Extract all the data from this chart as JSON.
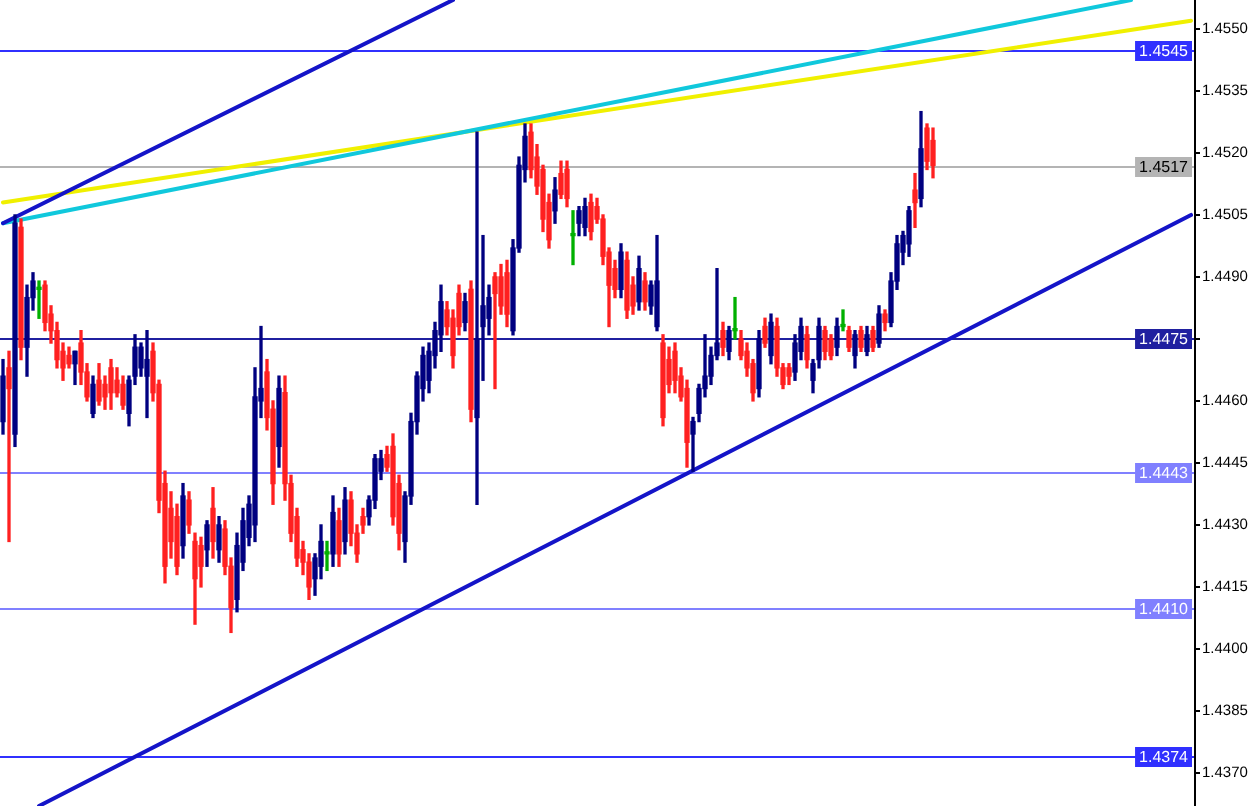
{
  "chart_data": {
    "type": "candlestick",
    "tick_labels": "y",
    "categories": [
      null,
      null,
      null,
      null,
      null,
      null,
      null,
      null,
      null,
      null,
      null,
      null,
      null,
      null,
      null,
      null,
      null,
      null,
      null,
      null,
      null,
      null,
      null,
      null,
      null,
      null,
      null,
      null,
      null,
      null,
      null,
      null,
      null,
      null,
      null,
      null,
      null,
      null,
      null,
      null,
      null,
      null,
      null,
      null,
      null,
      null,
      null,
      null,
      null,
      null,
      null,
      null,
      null,
      null,
      null,
      null,
      null,
      null,
      null,
      null,
      null,
      null,
      null,
      null,
      null,
      null,
      null,
      null,
      null,
      null,
      null,
      null,
      null,
      null,
      null,
      null,
      null,
      null,
      null,
      null,
      null,
      null,
      null,
      null,
      null,
      null,
      null,
      null,
      null,
      null,
      null,
      null,
      null,
      null,
      null,
      null,
      null,
      null,
      null,
      null,
      null,
      null,
      null,
      null,
      null,
      null,
      null,
      null,
      null,
      null,
      null,
      null,
      null,
      null,
      null,
      null,
      null,
      null,
      null,
      null,
      null,
      null,
      null,
      null,
      null,
      null,
      null,
      null,
      null,
      null,
      null,
      null,
      null,
      null,
      null,
      null,
      null,
      null,
      null,
      null,
      null,
      null,
      null,
      null,
      null,
      null,
      null,
      null,
      null,
      null,
      null,
      null,
      null,
      null,
      null,
      null,
      null,
      null,
      null,
      null,
      null,
      null,
      null,
      null,
      null,
      null,
      null,
      null,
      null,
      null,
      null,
      null,
      null,
      null,
      null,
      null,
      null,
      null,
      null,
      null,
      null,
      null,
      null,
      null,
      null,
      null,
      null,
      null,
      null,
      null,
      null,
      null,
      null,
      null,
      null,
      null,
      null,
      null,
      null
    ],
    "ohlc": [
      [
        1.4455,
        1.447,
        1.4452,
        1.4466
      ],
      [
        1.4468,
        1.4472,
        1.4426,
        1.4463
      ],
      [
        1.4452,
        1.4505,
        1.4449,
        1.4503
      ],
      [
        1.4502,
        1.4504,
        1.447,
        1.4473
      ],
      [
        1.4473,
        1.4488,
        1.4466,
        1.4485
      ],
      [
        1.4485,
        1.4491,
        1.4482,
        1.4489
      ],
      [
        1.4487,
        1.4489,
        1.448,
        1.4487
      ],
      [
        1.4488,
        1.4489,
        1.4477,
        1.4479
      ],
      [
        1.4481,
        1.4483,
        1.4474,
        1.4477
      ],
      [
        1.4477,
        1.4479,
        1.4468,
        1.447
      ],
      [
        1.4472,
        1.4474,
        1.4465,
        1.4468
      ],
      [
        1.4471,
        1.4473,
        1.4468,
        1.4469
      ],
      [
        1.4469,
        1.4472,
        1.4464,
        1.4472
      ],
      [
        1.4474,
        1.4477,
        1.4464,
        1.4467
      ],
      [
        1.4467,
        1.4469,
        1.446,
        1.4461
      ],
      [
        1.4457,
        1.4466,
        1.4456,
        1.4464
      ],
      [
        1.4465,
        1.4469,
        1.4459,
        1.446
      ],
      [
        1.4464,
        1.4466,
        1.4458,
        1.4461
      ],
      [
        1.4468,
        1.447,
        1.4458,
        1.4462
      ],
      [
        1.4465,
        1.4468,
        1.4461,
        1.4462
      ],
      [
        1.4464,
        1.4466,
        1.4458,
        1.4459
      ],
      [
        1.4457,
        1.4466,
        1.4454,
        1.4465
      ],
      [
        1.4466,
        1.4476,
        1.4464,
        1.4473
      ],
      [
        1.4468,
        1.4474,
        1.4466,
        1.4473
      ],
      [
        1.4466,
        1.4477,
        1.4456,
        1.447
      ],
      [
        1.4472,
        1.4474,
        1.446,
        1.4462
      ],
      [
        1.4464,
        1.4465,
        1.4433,
        1.4436
      ],
      [
        1.444,
        1.4443,
        1.4416,
        1.442
      ],
      [
        1.4434,
        1.4438,
        1.4422,
        1.4426
      ],
      [
        1.4432,
        1.4435,
        1.4418,
        1.442
      ],
      [
        1.4425,
        1.444,
        1.4422,
        1.4437
      ],
      [
        1.4436,
        1.4438,
        1.4428,
        1.443
      ],
      [
        1.4426,
        1.4428,
        1.4406,
        1.4417
      ],
      [
        1.4425,
        1.4427,
        1.4415,
        1.442
      ],
      [
        1.4424,
        1.4431,
        1.442,
        1.443
      ],
      [
        1.4434,
        1.4439,
        1.4422,
        1.4426
      ],
      [
        1.4424,
        1.4432,
        1.4421,
        1.443
      ],
      [
        1.4429,
        1.4431,
        1.4418,
        1.442
      ],
      [
        1.442,
        1.4422,
        1.4404,
        1.441
      ],
      [
        1.4412,
        1.4428,
        1.4409,
        1.4425
      ],
      [
        1.4421,
        1.4434,
        1.4419,
        1.4431
      ],
      [
        1.4427,
        1.4437,
        1.4425,
        1.4435
      ],
      [
        1.443,
        1.4468,
        1.4426,
        1.4461
      ],
      [
        1.446,
        1.4478,
        1.4456,
        1.4463
      ],
      [
        1.4467,
        1.447,
        1.4453,
        1.4456
      ],
      [
        1.4458,
        1.446,
        1.4435,
        1.444
      ],
      [
        1.4449,
        1.4466,
        1.4444,
        1.4463
      ],
      [
        1.4462,
        1.4466,
        1.4436,
        1.444
      ],
      [
        1.444,
        1.4442,
        1.4426,
        1.4428
      ],
      [
        1.4432,
        1.4434,
        1.442,
        1.4422
      ],
      [
        1.4424,
        1.4426,
        1.4418,
        1.4421
      ],
      [
        1.4421,
        1.4423,
        1.4412,
        1.4415
      ],
      [
        1.4417,
        1.4423,
        1.4413,
        1.4422
      ],
      [
        1.442,
        1.443,
        1.4417,
        1.4426
      ],
      [
        1.4423,
        1.4426,
        1.4419,
        1.4423
      ],
      [
        1.4423,
        1.4437,
        1.442,
        1.4433
      ],
      [
        1.4431,
        1.4434,
        1.442,
        1.4423
      ],
      [
        1.4426,
        1.4439,
        1.4423,
        1.4436
      ],
      [
        1.4436,
        1.4438,
        1.4425,
        1.4428
      ],
      [
        1.4428,
        1.443,
        1.4421,
        1.4423
      ],
      [
        1.4432,
        1.4434,
        1.4428,
        1.443
      ],
      [
        1.4432,
        1.4437,
        1.443,
        1.4436
      ],
      [
        1.4436,
        1.4447,
        1.4434,
        1.4446
      ],
      [
        1.4443,
        1.4448,
        1.4441,
        1.4446
      ],
      [
        1.4447,
        1.4449,
        1.4443,
        1.4444
      ],
      [
        1.4449,
        1.4452,
        1.443,
        1.4432
      ],
      [
        1.444,
        1.4442,
        1.4424,
        1.4428
      ],
      [
        1.4426,
        1.4438,
        1.4421,
        1.4437
      ],
      [
        1.4437,
        1.4457,
        1.4435,
        1.4455
      ],
      [
        1.4455,
        1.4467,
        1.4452,
        1.4466
      ],
      [
        1.4463,
        1.4473,
        1.446,
        1.4471
      ],
      [
        1.4465,
        1.4474,
        1.4462,
        1.4472
      ],
      [
        1.4471,
        1.4479,
        1.4468,
        1.4477
      ],
      [
        1.4476,
        1.4488,
        1.4472,
        1.4484
      ],
      [
        1.4482,
        1.4484,
        1.4476,
        1.4478
      ],
      [
        1.448,
        1.4482,
        1.4468,
        1.4471
      ],
      [
        1.4486,
        1.4488,
        1.4476,
        1.4478
      ],
      [
        1.4479,
        1.4486,
        1.4477,
        1.4484
      ],
      [
        1.4487,
        1.4489,
        1.4455,
        1.4458
      ],
      [
        1.4456,
        1.4525,
        1.4435,
        1.4475
      ],
      [
        1.4478,
        1.45,
        1.4465,
        1.4483
      ],
      [
        1.448,
        1.4488,
        1.4476,
        1.4485
      ],
      [
        1.449,
        1.4491,
        1.4463,
        1.4486
      ],
      [
        1.449,
        1.4493,
        1.4481,
        1.4483
      ],
      [
        1.4491,
        1.4494,
        1.4478,
        1.4481
      ],
      [
        1.4477,
        1.4499,
        1.4476,
        1.4497
      ],
      [
        1.4497,
        1.4519,
        1.4496,
        1.4517
      ],
      [
        1.4516,
        1.4527,
        1.4513,
        1.4524
      ],
      [
        1.4525,
        1.4527,
        1.4514,
        1.4516
      ],
      [
        1.4519,
        1.4522,
        1.451,
        1.4512
      ],
      [
        1.4516,
        1.4517,
        1.4501,
        1.4504
      ],
      [
        1.4508,
        1.451,
        1.4497,
        1.4499
      ],
      [
        1.4506,
        1.4514,
        1.4503,
        1.4511
      ],
      [
        1.4515,
        1.4518,
        1.4509,
        1.451
      ],
      [
        1.4516,
        1.4518,
        1.4507,
        1.4509
      ],
      [
        1.45,
        1.4506,
        1.4493,
        1.45
      ],
      [
        1.4503,
        1.4507,
        1.45,
        1.4506
      ],
      [
        1.4502,
        1.4509,
        1.45,
        1.4507
      ],
      [
        1.4508,
        1.451,
        1.4499,
        1.4501
      ],
      [
        1.4507,
        1.4509,
        1.4503,
        1.4504
      ],
      [
        1.4504,
        1.4505,
        1.4493,
        1.4495
      ],
      [
        1.4496,
        1.4497,
        1.4478,
        1.4488
      ],
      [
        1.4492,
        1.4494,
        1.4485,
        1.4487
      ],
      [
        1.4487,
        1.4498,
        1.4485,
        1.4496
      ],
      [
        1.4494,
        1.4496,
        1.448,
        1.4482
      ],
      [
        1.4488,
        1.449,
        1.4481,
        1.4483
      ],
      [
        1.4484,
        1.4495,
        1.4482,
        1.4492
      ],
      [
        1.4489,
        1.4491,
        1.4482,
        1.4484
      ],
      [
        1.4483,
        1.4489,
        1.4481,
        1.4488
      ],
      [
        1.4478,
        1.45,
        1.4477,
        1.4489
      ],
      [
        1.4474,
        1.4476,
        1.4454,
        1.4456
      ],
      [
        1.447,
        1.4473,
        1.4462,
        1.4464
      ],
      [
        1.4472,
        1.4474,
        1.4462,
        1.4465
      ],
      [
        1.4466,
        1.4468,
        1.446,
        1.4461
      ],
      [
        1.4463,
        1.4465,
        1.4444,
        1.445
      ],
      [
        1.4452,
        1.4456,
        1.4443,
        1.4455
      ],
      [
        1.4457,
        1.4464,
        1.4455,
        1.4463
      ],
      [
        1.4463,
        1.4476,
        1.4461,
        1.4466
      ],
      [
        1.4466,
        1.4473,
        1.4464,
        1.4471
      ],
      [
        1.4471,
        1.4492,
        1.447,
        1.4474
      ],
      [
        1.4477,
        1.4479,
        1.4471,
        1.4473
      ],
      [
        1.4472,
        1.4478,
        1.447,
        1.4477
      ],
      [
        1.4477,
        1.4485,
        1.4475,
        1.4477
      ],
      [
        1.4475,
        1.4477,
        1.447,
        1.4471
      ],
      [
        1.4472,
        1.4474,
        1.4466,
        1.4468
      ],
      [
        1.4469,
        1.447,
        1.446,
        1.4462
      ],
      [
        1.4463,
        1.4477,
        1.4461,
        1.4475
      ],
      [
        1.4478,
        1.448,
        1.4473,
        1.4474
      ],
      [
        1.4471,
        1.4481,
        1.4469,
        1.4479
      ],
      [
        1.4478,
        1.448,
        1.4466,
        1.4468
      ],
      [
        1.4468,
        1.4469,
        1.4463,
        1.4464
      ],
      [
        1.4468,
        1.4469,
        1.4464,
        1.4466
      ],
      [
        1.4467,
        1.4476,
        1.4465,
        1.4474
      ],
      [
        1.4472,
        1.448,
        1.447,
        1.4478
      ],
      [
        1.4476,
        1.4478,
        1.4468,
        1.447
      ],
      [
        1.4465,
        1.447,
        1.4462,
        1.4469
      ],
      [
        1.447,
        1.448,
        1.4468,
        1.4478
      ],
      [
        1.4477,
        1.4478,
        1.447,
        1.4472
      ],
      [
        1.4475,
        1.4476,
        1.447,
        1.4471
      ],
      [
        1.4473,
        1.448,
        1.4471,
        1.4478
      ],
      [
        1.4478,
        1.4482,
        1.4477,
        1.4478
      ],
      [
        1.4477,
        1.4478,
        1.4472,
        1.4473
      ],
      [
        1.4471,
        1.4477,
        1.4468,
        1.4476
      ],
      [
        1.4477,
        1.4478,
        1.4472,
        1.4473
      ],
      [
        1.4472,
        1.4478,
        1.4471,
        1.4476
      ],
      [
        1.4477,
        1.4478,
        1.4472,
        1.4473
      ],
      [
        1.4474,
        1.4483,
        1.4473,
        1.4481
      ],
      [
        1.4481,
        1.4482,
        1.4477,
        1.4479
      ],
      [
        1.4479,
        1.4491,
        1.4478,
        1.4489
      ],
      [
        1.4489,
        1.45,
        1.4487,
        1.4498
      ],
      [
        1.4496,
        1.4501,
        1.4493,
        1.45
      ],
      [
        1.4498,
        1.4507,
        1.4495,
        1.4506
      ],
      [
        1.4511,
        1.4515,
        1.4502,
        1.4508
      ],
      [
        1.4509,
        1.453,
        1.4507,
        1.4521
      ],
      [
        1.4526,
        1.4527,
        1.4516,
        1.4518
      ],
      [
        1.4523,
        1.4526,
        1.4514,
        1.4517
      ],
      null,
      null,
      null,
      null,
      null,
      null,
      null,
      null,
      null,
      null,
      null,
      null,
      null,
      null,
      null,
      null,
      null,
      null,
      null,
      null,
      null,
      null,
      null,
      null,
      null,
      null,
      null,
      null,
      null,
      null,
      null,
      null,
      null,
      null,
      null,
      null,
      null,
      null,
      null,
      null,
      null,
      null,
      null
    ],
    "colors": [
      "#000080",
      "#ff2020",
      "#000080",
      "#ff2020",
      "#000080",
      "#000080",
      "#00b000",
      "#ff2020",
      "#ff2020",
      "#ff2020",
      "#ff2020",
      "#ff2020",
      "#000080",
      "#ff2020",
      "#ff2020",
      "#000080",
      "#ff2020",
      "#ff2020",
      "#ff2020",
      "#ff2020",
      "#ff2020",
      "#000080",
      "#000080",
      "#000080",
      "#000080",
      "#ff2020",
      "#ff2020",
      "#ff2020",
      "#ff2020",
      "#ff2020",
      "#000080",
      "#ff2020",
      "#ff2020",
      "#ff2020",
      "#000080",
      "#ff2020",
      "#000080",
      "#ff2020",
      "#ff2020",
      "#000080",
      "#000080",
      "#000080",
      "#000080",
      "#000080",
      "#ff2020",
      "#ff2020",
      "#000080",
      "#ff2020",
      "#ff2020",
      "#ff2020",
      "#ff2020",
      "#ff2020",
      "#000080",
      "#000080",
      "#00b000",
      "#000080",
      "#ff2020",
      "#000080",
      "#ff2020",
      "#ff2020",
      "#ff2020",
      "#000080",
      "#000080",
      "#000080",
      "#ff2020",
      "#ff2020",
      "#ff2020",
      "#000080",
      "#000080",
      "#000080",
      "#000080",
      "#000080",
      "#000080",
      "#000080",
      "#ff2020",
      "#ff2020",
      "#ff2020",
      "#000080",
      "#ff2020",
      "#000080",
      "#000080",
      "#000080",
      "#ff2020",
      "#ff2020",
      "#ff2020",
      "#000080",
      "#000080",
      "#000080",
      "#ff2020",
      "#ff2020",
      "#ff2020",
      "#ff2020",
      "#000080",
      "#ff2020",
      "#ff2020",
      "#00b000",
      "#000080",
      "#000080",
      "#ff2020",
      "#ff2020",
      "#ff2020",
      "#ff2020",
      "#ff2020",
      "#000080",
      "#ff2020",
      "#ff2020",
      "#000080",
      "#ff2020",
      "#000080",
      "#000080",
      "#ff2020",
      "#ff2020",
      "#ff2020",
      "#ff2020",
      "#ff2020",
      "#000080",
      "#000080",
      "#000080",
      "#000080",
      "#000080",
      "#ff2020",
      "#000080",
      "#00b000",
      "#ff2020",
      "#ff2020",
      "#ff2020",
      "#000080",
      "#ff2020",
      "#000080",
      "#ff2020",
      "#ff2020",
      "#ff2020",
      "#000080",
      "#000080",
      "#ff2020",
      "#000080",
      "#000080",
      "#ff2020",
      "#ff2020",
      "#000080",
      "#00b000",
      "#ff2020",
      "#000080",
      "#ff2020",
      "#000080",
      "#ff2020",
      "#000080",
      "#ff2020",
      "#000080",
      "#000080",
      "#000080",
      "#000080",
      "#ff2020",
      "#000080",
      "#ff2020",
      "#ff2020",
      null,
      null,
      null,
      null,
      null,
      null,
      null,
      null,
      null,
      null,
      null,
      null,
      null,
      null,
      null,
      null,
      null,
      null,
      null,
      null,
      null,
      null,
      null,
      null,
      null,
      null,
      null,
      null,
      null,
      null,
      null,
      null,
      null,
      null,
      null,
      null,
      null,
      null,
      null,
      null,
      null,
      null,
      null
    ],
    "series": [
      {
        "type": "line",
        "color": "#1414c8",
        "values": [
          1.4503,
          null,
          null,
          null,
          null,
          null,
          null,
          null,
          null,
          null,
          null,
          null,
          null,
          null,
          null,
          null,
          null,
          null,
          null,
          null,
          null,
          null,
          null,
          null,
          null,
          null,
          null,
          null,
          null,
          null,
          null,
          null,
          null,
          null,
          null,
          null,
          null,
          null,
          null,
          null,
          null,
          null,
          null,
          null,
          null,
          null,
          null,
          null,
          null,
          null,
          null,
          null,
          null,
          null,
          null,
          null,
          null,
          null,
          null,
          null,
          null,
          null,
          null,
          null,
          null,
          null,
          null,
          null,
          null,
          null,
          null,
          null,
          null,
          null,
          null,
          1.4557,
          null,
          null,
          null,
          null,
          null,
          null,
          null,
          null,
          null,
          null,
          null,
          null,
          null,
          null,
          null,
          null,
          null,
          null,
          null,
          null,
          null,
          null,
          null,
          null,
          null,
          null,
          null,
          null,
          null,
          null,
          null,
          null,
          null,
          null,
          null,
          null,
          null,
          null,
          null,
          null,
          null,
          null,
          null,
          null,
          null,
          null,
          null,
          null,
          null,
          null,
          null,
          null,
          null,
          null,
          null,
          null,
          null,
          null,
          null,
          null,
          null,
          null,
          null,
          null,
          null,
          null,
          null,
          null,
          null,
          null,
          null,
          null,
          null,
          null,
          null,
          null,
          null,
          null,
          null,
          null,
          null,
          null,
          null,
          null,
          null,
          null,
          null,
          null,
          null,
          null,
          null,
          null,
          null,
          null,
          null,
          null,
          null,
          null,
          null,
          null,
          null,
          null,
          null,
          null,
          null,
          null,
          null,
          null,
          null,
          null,
          null,
          null,
          null,
          null,
          null,
          null,
          null,
          null,
          null,
          null,
          null,
          null,
          null
        ]
      },
      {
        "type": "line",
        "color": "#10c8dc",
        "values": [
          1.4503,
          null,
          null,
          null,
          null,
          null,
          null,
          null,
          null,
          null,
          null,
          null,
          null,
          null,
          null,
          null,
          null,
          null,
          null,
          null,
          null,
          null,
          null,
          null,
          null,
          null,
          null,
          null,
          null,
          null,
          null,
          null,
          null,
          null,
          null,
          null,
          null,
          null,
          null,
          null,
          null,
          null,
          null,
          null,
          null,
          null,
          null,
          null,
          null,
          null,
          null,
          null,
          null,
          null,
          null,
          null,
          null,
          null,
          null,
          null,
          null,
          null,
          null,
          null,
          null,
          null,
          null,
          null,
          null,
          null,
          null,
          null,
          null,
          null,
          null,
          null,
          null,
          null,
          null,
          null,
          null,
          null,
          null,
          null,
          null,
          null,
          null,
          null,
          null,
          null,
          null,
          null,
          null,
          null,
          null,
          null,
          null,
          null,
          null,
          null,
          null,
          null,
          null,
          null,
          null,
          null,
          null,
          null,
          null,
          null,
          null,
          null,
          null,
          null,
          null,
          null,
          null,
          null,
          null,
          null,
          null,
          null,
          null,
          null,
          null,
          null,
          null,
          null,
          null,
          null,
          null,
          null,
          null,
          null,
          null,
          null,
          null,
          null,
          null,
          null,
          null,
          null,
          null,
          null,
          null,
          null,
          null,
          null,
          null,
          null,
          null,
          null,
          null,
          null,
          null,
          null,
          null,
          null,
          null,
          null,
          null,
          null,
          null,
          null,
          null,
          null,
          null,
          null,
          null,
          null,
          null,
          null,
          null,
          null,
          null,
          null,
          null,
          null,
          null,
          null,
          null,
          null,
          null,
          null,
          null,
          null,
          null,
          null,
          1.4557,
          null,
          null,
          null,
          null,
          null,
          null,
          null,
          null,
          null,
          null
        ]
      },
      {
        "type": "line",
        "color": "#f0f000",
        "values": [
          1.4508,
          null,
          null,
          null,
          null,
          null,
          null,
          null,
          null,
          null,
          null,
          null,
          null,
          null,
          null,
          null,
          null,
          null,
          null,
          null,
          null,
          null,
          null,
          null,
          null,
          null,
          null,
          null,
          null,
          null,
          null,
          null,
          null,
          null,
          null,
          null,
          null,
          null,
          null,
          null,
          null,
          null,
          null,
          null,
          null,
          null,
          null,
          null,
          null,
          null,
          null,
          null,
          null,
          null,
          null,
          null,
          null,
          null,
          null,
          null,
          null,
          null,
          null,
          null,
          null,
          null,
          null,
          null,
          null,
          null,
          null,
          null,
          null,
          null,
          null,
          null,
          null,
          null,
          null,
          null,
          null,
          null,
          null,
          null,
          null,
          null,
          null,
          null,
          null,
          null,
          null,
          null,
          null,
          null,
          null,
          null,
          null,
          null,
          null,
          null,
          null,
          null,
          null,
          null,
          null,
          null,
          null,
          null,
          null,
          null,
          null,
          null,
          null,
          null,
          null,
          null,
          null,
          null,
          null,
          null,
          null,
          null,
          null,
          null,
          null,
          null,
          null,
          null,
          null,
          null,
          null,
          null,
          null,
          null,
          null,
          null,
          null,
          null,
          null,
          null,
          null,
          null,
          null,
          null,
          null,
          null,
          null,
          null,
          null,
          null,
          null,
          null,
          null,
          null,
          null,
          null,
          null,
          null,
          null,
          null,
          null,
          null,
          null,
          null,
          null,
          null,
          null,
          null,
          null,
          null,
          null,
          null,
          null,
          null,
          null,
          null,
          null,
          null,
          null,
          null,
          null,
          null,
          null,
          null,
          null,
          null,
          null,
          null,
          null,
          null,
          null,
          null,
          null,
          null,
          null,
          null,
          null,
          null,
          1.4552
        ]
      },
      {
        "type": "line",
        "color": "#1414c8",
        "values": [
          null,
          null,
          null,
          null,
          null,
          null,
          1.4362,
          null,
          null,
          null,
          null,
          null,
          null,
          null,
          null,
          null,
          null,
          null,
          null,
          null,
          null,
          null,
          null,
          null,
          null,
          null,
          null,
          null,
          null,
          null,
          null,
          null,
          null,
          null,
          null,
          null,
          null,
          null,
          null,
          null,
          null,
          null,
          null,
          null,
          null,
          null,
          null,
          null,
          null,
          null,
          null,
          null,
          null,
          null,
          null,
          null,
          null,
          null,
          null,
          null,
          null,
          null,
          null,
          null,
          null,
          null,
          null,
          null,
          null,
          null,
          null,
          null,
          null,
          null,
          null,
          null,
          null,
          null,
          null,
          null,
          null,
          null,
          null,
          null,
          null,
          null,
          null,
          null,
          null,
          null,
          null,
          null,
          null,
          null,
          null,
          null,
          null,
          null,
          null,
          null,
          null,
          null,
          null,
          null,
          null,
          null,
          null,
          null,
          null,
          null,
          null,
          null,
          null,
          null,
          null,
          null,
          null,
          null,
          null,
          null,
          null,
          null,
          null,
          null,
          null,
          null,
          null,
          null,
          null,
          null,
          null,
          null,
          null,
          null,
          null,
          null,
          null,
          null,
          null,
          null,
          null,
          null,
          null,
          null,
          null,
          null,
          null,
          null,
          null,
          null,
          null,
          null,
          null,
          null,
          null,
          null,
          null,
          null,
          null,
          null,
          null,
          null,
          null,
          null,
          null,
          null,
          null,
          null,
          null,
          null,
          null,
          null,
          null,
          null,
          null,
          null,
          null,
          null,
          null,
          null,
          null,
          null,
          null,
          null,
          null,
          null,
          null,
          null,
          null,
          null,
          null,
          null,
          null,
          null,
          null,
          null,
          null,
          null,
          1.4505
        ]
      }
    ],
    "ylim": [
      1.4362,
      1.4557
    ],
    "yticks": [
      {
        "value": 1.437,
        "label": "1.4370"
      },
      1.4385,
      {
        "value": 1.44,
        "label": "1.4400"
      },
      1.4415,
      {
        "value": 1.443,
        "label": "1.4430"
      },
      1.4445,
      {
        "value": 1.446,
        "label": "1.4460"
      },
      {
        "value": 1.4475,
        "label": null
      },
      {
        "value": 1.449,
        "label": "1.4490"
      },
      1.4505,
      {
        "value": 1.452,
        "label": "1.4520"
      },
      1.4535,
      {
        "value": 1.455,
        "label": "1.4550"
      }
    ],
    "ref_lines": [
      {
        "axis": "y",
        "value": 1.4545,
        "label": "1.4545",
        "color": "#3030ff"
      },
      {
        "axis": "y",
        "value": 1.4517,
        "label": "1.4517",
        "color": "#b4b4b4"
      },
      {
        "axis": "y",
        "value": 1.4475,
        "label": "1.4475",
        "color": "#2020a0"
      },
      {
        "axis": "y",
        "value": 1.4443,
        "label": "1.4443",
        "color": "#8080ff"
      },
      {
        "axis": "y",
        "value": 1.441,
        "label": "1.4410",
        "color": "#8080ff"
      },
      {
        "axis": "y",
        "value": 1.4374,
        "label": "1.4374",
        "color": "#3030ff"
      }
    ]
  }
}
